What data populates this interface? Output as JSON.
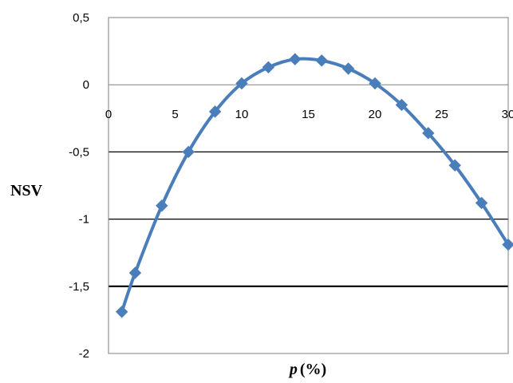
{
  "chart_data": {
    "type": "line",
    "title": "",
    "xlabel_var": "p",
    "xlabel_unit": "(%)",
    "ylabel": "NSV",
    "xlim": [
      0,
      30
    ],
    "ylim": [
      -2,
      0.5
    ],
    "x_ticks": [
      {
        "value": 0,
        "label": "0"
      },
      {
        "value": 5,
        "label": "5"
      },
      {
        "value": 10,
        "label": "10"
      },
      {
        "value": 15,
        "label": "15"
      },
      {
        "value": 20,
        "label": "20"
      },
      {
        "value": 25,
        "label": "25"
      },
      {
        "value": 30,
        "label": "30"
      }
    ],
    "y_ticks": [
      {
        "value": 0.5,
        "label": "0,5"
      },
      {
        "value": 0,
        "label": "0"
      },
      {
        "value": -0.5,
        "label": "-0,5"
      },
      {
        "value": -1,
        "label": "-1"
      },
      {
        "value": -1.5,
        "label": "-1,5"
      },
      {
        "value": -2,
        "label": "-2"
      }
    ],
    "grid": "horizontal",
    "legend": "none",
    "series": [
      {
        "color": "#4a7ebb",
        "marker": "diamond",
        "x": [
          1,
          2,
          4,
          6,
          8,
          10,
          12,
          14,
          16,
          18,
          20,
          22,
          24,
          26,
          28,
          30
        ],
        "y": [
          -1.69,
          -1.4,
          -0.9,
          -0.5,
          -0.2,
          0.01,
          0.13,
          0.19,
          0.18,
          0.12,
          0.01,
          -0.15,
          -0.36,
          -0.6,
          -0.88,
          -1.19
        ]
      }
    ]
  }
}
